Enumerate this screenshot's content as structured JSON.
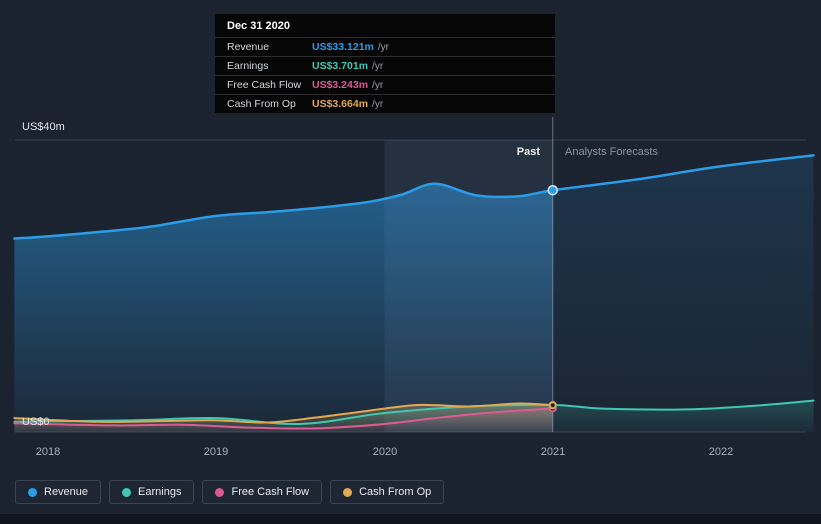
{
  "panel": {
    "background": "#1b2330"
  },
  "tooltip": {
    "date": "Dec 31 2020",
    "rows": [
      {
        "label": "Revenue",
        "value": "US$33.121m",
        "suffix": "/yr",
        "color": "#2b9ce8"
      },
      {
        "label": "Earnings",
        "value": "US$3.701m",
        "suffix": "/yr",
        "color": "#3fc8b4"
      },
      {
        "label": "Free Cash Flow",
        "value": "US$3.243m",
        "suffix": "/yr",
        "color": "#dd5a92"
      },
      {
        "label": "Cash From Op",
        "value": "US$3.664m",
        "suffix": "/yr",
        "color": "#e2a94f"
      }
    ]
  },
  "axis": {
    "y_top_label": "US$40m",
    "y_bottom_label": "US$0",
    "x_ticks": [
      "2018",
      "2019",
      "2020",
      "2021",
      "2022"
    ]
  },
  "annotations": {
    "past_label": "Past",
    "forecast_label": "Analysts Forecasts"
  },
  "legend": [
    {
      "label": "Revenue",
      "color": "#2b9ce8"
    },
    {
      "label": "Earnings",
      "color": "#3fc8b4"
    },
    {
      "label": "Free Cash Flow",
      "color": "#dd5a92"
    },
    {
      "label": "Cash From Op",
      "color": "#e2a94f"
    }
  ],
  "chart_data": {
    "type": "line",
    "title": "Past and forecast financials (currency: US$, millions per year)",
    "x_unit": "year",
    "xlim": [
      2017.8,
      2022.55
    ],
    "ylim": [
      0,
      40
    ],
    "y_gridlines": [
      0,
      40
    ],
    "past_until": 2021,
    "highlight_band": [
      2020,
      2021
    ],
    "legend_position": "bottom",
    "series": [
      {
        "name": "Revenue",
        "color": "#2b9ce8",
        "area": true,
        "points": [
          [
            2017.8,
            26.5
          ],
          [
            2018,
            26.8
          ],
          [
            2018.3,
            27.4
          ],
          [
            2018.6,
            28.1
          ],
          [
            2019,
            29.6
          ],
          [
            2019.3,
            30.1
          ],
          [
            2019.6,
            30.7
          ],
          [
            2019.9,
            31.5
          ],
          [
            2020.1,
            32.5
          ],
          [
            2020.3,
            34.0
          ],
          [
            2020.55,
            32.4
          ],
          [
            2020.8,
            32.3
          ],
          [
            2021,
            33.121
          ],
          [
            2021.5,
            34.6
          ],
          [
            2022,
            36.4
          ],
          [
            2022.55,
            37.9
          ]
        ]
      },
      {
        "name": "Earnings",
        "color": "#3fc8b4",
        "points": [
          [
            2017.8,
            1.4
          ],
          [
            2018.5,
            1.6
          ],
          [
            2019,
            1.9
          ],
          [
            2019.5,
            1.1
          ],
          [
            2020,
            2.6
          ],
          [
            2020.5,
            3.5
          ],
          [
            2021,
            3.701
          ],
          [
            2021.3,
            3.2
          ],
          [
            2021.8,
            3.1
          ],
          [
            2022.2,
            3.6
          ],
          [
            2022.55,
            4.3
          ]
        ]
      },
      {
        "name": "Free Cash Flow",
        "color": "#dd5a92",
        "ends_at_past": true,
        "points": [
          [
            2017.8,
            1.2
          ],
          [
            2018.4,
            0.9
          ],
          [
            2018.8,
            1.0
          ],
          [
            2019.2,
            0.6
          ],
          [
            2019.6,
            0.5
          ],
          [
            2020,
            1.1
          ],
          [
            2020.3,
            1.9
          ],
          [
            2020.6,
            2.6
          ],
          [
            2021,
            3.243
          ]
        ]
      },
      {
        "name": "Cash From Op",
        "color": "#e2a94f",
        "ends_at_past": true,
        "points": [
          [
            2017.8,
            1.9
          ],
          [
            2018.3,
            1.4
          ],
          [
            2018.7,
            1.5
          ],
          [
            2019,
            1.6
          ],
          [
            2019.3,
            1.3
          ],
          [
            2019.6,
            2.0
          ],
          [
            2019.9,
            2.9
          ],
          [
            2020.2,
            3.7
          ],
          [
            2020.5,
            3.5
          ],
          [
            2020.8,
            3.9
          ],
          [
            2021,
            3.664
          ]
        ]
      }
    ],
    "hover": {
      "x": 2021,
      "markers": [
        {
          "series": "Revenue",
          "value": 33.121
        },
        {
          "series": "Earnings",
          "value": 3.701
        },
        {
          "series": "Free Cash Flow",
          "value": 3.243
        },
        {
          "series": "Cash From Op",
          "value": 3.664
        }
      ]
    }
  }
}
